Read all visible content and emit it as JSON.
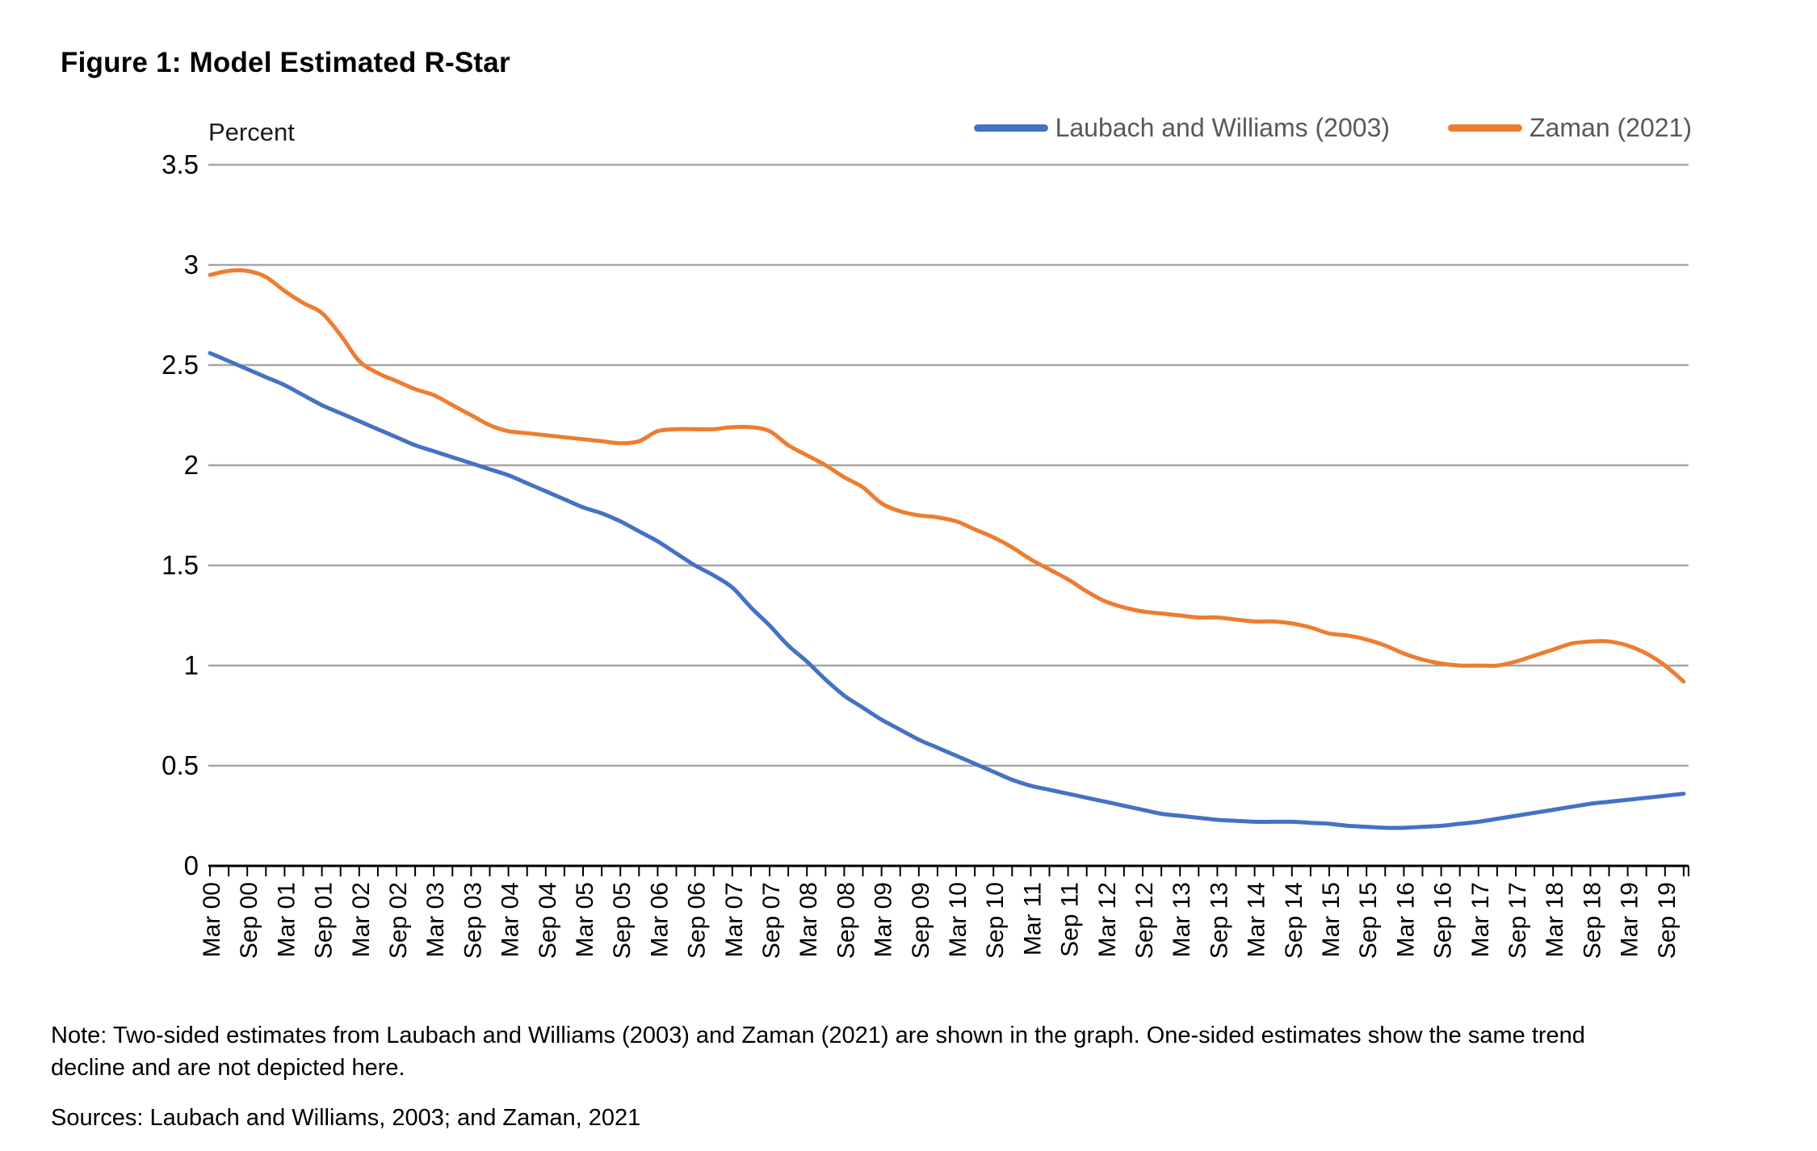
{
  "figure": {
    "title": "Figure 1: Model Estimated R-Star"
  },
  "note": "Note: Two-sided estimates from Laubach and Williams (2003) and Zaman (2021) are shown in the graph. One-sided estimates show the same trend decline and are not depicted here.",
  "sources": "Sources: Laubach and Williams, 2003; and Zaman, 2021",
  "colors": {
    "laubach_williams_line": "#4472C4",
    "zaman_line": "#ED7D31",
    "gridline": "#A6A6A6",
    "axis": "#000000",
    "legend_text": "#595959"
  },
  "chart_data": {
    "type": "line",
    "title": "Figure 1: Model Estimated R-Star",
    "xlabel": "",
    "ylabel": "Percent",
    "ylim": [
      0,
      3.5
    ],
    "y_ticks": [
      "0",
      "0.5",
      "1",
      "1.5",
      "2",
      "2.5",
      "3",
      "3.5"
    ],
    "grid": "horizontal",
    "legend_position": "top-right",
    "x_frequency": "quarterly",
    "x_start": "Mar 2000",
    "x_end": "Dec 2019",
    "x_tick_labels": [
      "Mar 00",
      "Sep 00",
      "Mar 01",
      "Sep 01",
      "Mar 02",
      "Sep 02",
      "Mar 03",
      "Sep 03",
      "Mar 04",
      "Sep 04",
      "Mar 05",
      "Sep 05",
      "Mar 06",
      "Sep 06",
      "Mar 07",
      "Sep 07",
      "Mar 08",
      "Sep 08",
      "Mar 09",
      "Sep 09",
      "Mar 10",
      "Sep 10",
      "Mar 11",
      "Sep 11",
      "Mar 12",
      "Sep 12",
      "Mar 13",
      "Sep 13",
      "Mar 14",
      "Sep 14",
      "Mar 15",
      "Sep 15",
      "Mar 16",
      "Sep 16",
      "Mar 17",
      "Sep 17",
      "Mar 18",
      "Sep 18",
      "Mar 19",
      "Sep 19"
    ],
    "series": [
      {
        "name": "Laubach and Williams (2003)",
        "color": "#4472C4",
        "values": [
          2.56,
          2.52,
          2.48,
          2.44,
          2.4,
          2.35,
          2.3,
          2.26,
          2.22,
          2.18,
          2.14,
          2.1,
          2.07,
          2.04,
          2.01,
          1.98,
          1.95,
          1.91,
          1.87,
          1.83,
          1.79,
          1.76,
          1.72,
          1.67,
          1.62,
          1.56,
          1.5,
          1.45,
          1.39,
          1.29,
          1.2,
          1.1,
          1.02,
          0.93,
          0.85,
          0.79,
          0.73,
          0.68,
          0.63,
          0.59,
          0.55,
          0.51,
          0.47,
          0.43,
          0.4,
          0.38,
          0.36,
          0.34,
          0.32,
          0.3,
          0.28,
          0.26,
          0.25,
          0.24,
          0.23,
          0.225,
          0.22,
          0.22,
          0.22,
          0.215,
          0.21,
          0.2,
          0.195,
          0.19,
          0.19,
          0.195,
          0.2,
          0.21,
          0.22,
          0.235,
          0.25,
          0.265,
          0.28,
          0.295,
          0.31,
          0.32,
          0.33,
          0.34,
          0.35,
          0.36
        ]
      },
      {
        "name": "Zaman (2021)",
        "color": "#ED7D31",
        "values": [
          2.95,
          2.97,
          2.97,
          2.94,
          2.87,
          2.81,
          2.76,
          2.65,
          2.52,
          2.46,
          2.42,
          2.38,
          2.35,
          2.3,
          2.25,
          2.2,
          2.17,
          2.16,
          2.15,
          2.14,
          2.13,
          2.12,
          2.11,
          2.12,
          2.17,
          2.18,
          2.18,
          2.18,
          2.19,
          2.19,
          2.17,
          2.1,
          2.05,
          2.0,
          1.94,
          1.89,
          1.81,
          1.77,
          1.75,
          1.74,
          1.72,
          1.68,
          1.64,
          1.59,
          1.53,
          1.48,
          1.43,
          1.37,
          1.32,
          1.29,
          1.27,
          1.26,
          1.25,
          1.24,
          1.24,
          1.23,
          1.22,
          1.22,
          1.21,
          1.19,
          1.16,
          1.15,
          1.13,
          1.1,
          1.06,
          1.03,
          1.01,
          1.0,
          1.0,
          1.0,
          1.02,
          1.05,
          1.08,
          1.11,
          1.12,
          1.12,
          1.1,
          1.06,
          1.0,
          0.92
        ]
      }
    ]
  }
}
